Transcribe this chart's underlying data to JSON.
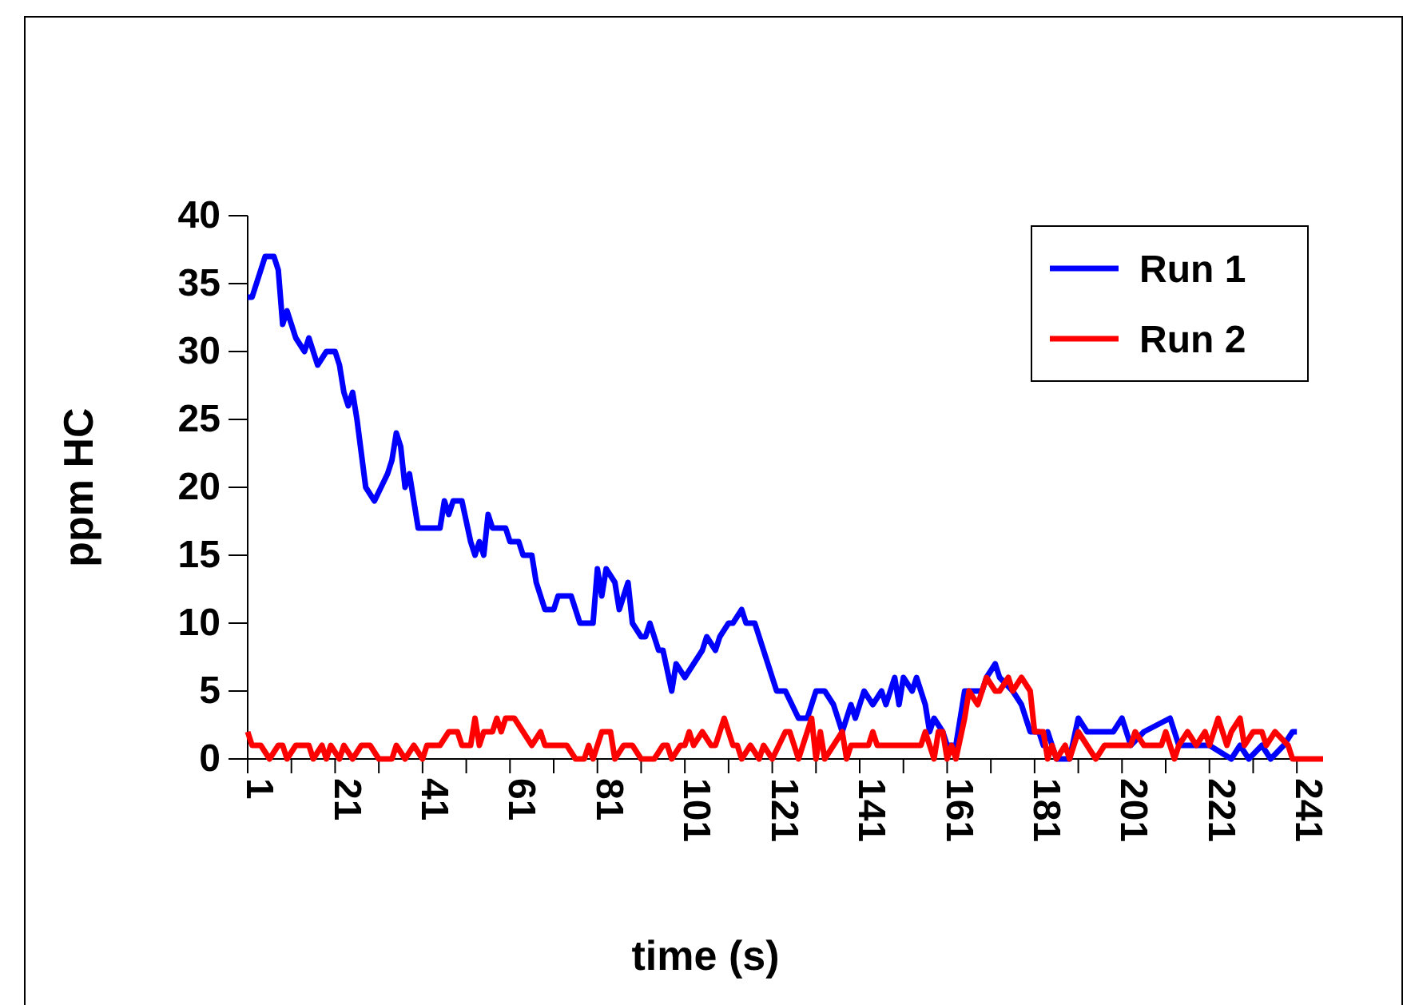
{
  "chart_data": {
    "type": "line",
    "xlabel": "time (s)",
    "ylabel": "ppm HC",
    "xlim": [
      1,
      247
    ],
    "ylim": [
      0,
      40
    ],
    "xticks": [
      1,
      {
        "value": 11,
        "label": null
      },
      21,
      {
        "value": 31,
        "label": null
      },
      41,
      {
        "value": 51,
        "label": null
      },
      61,
      {
        "value": 71,
        "label": null
      },
      81,
      {
        "value": 91,
        "label": null
      },
      101,
      {
        "value": 111,
        "label": null
      },
      121,
      {
        "value": 131,
        "label": null
      },
      141,
      {
        "value": 151,
        "label": null
      },
      161,
      {
        "value": 171,
        "label": null
      },
      181,
      {
        "value": 191,
        "label": null
      },
      201,
      {
        "value": 211,
        "label": null
      },
      221,
      {
        "value": 231,
        "label": null
      },
      241
    ],
    "yticks": [
      0,
      5,
      10,
      15,
      20,
      25,
      30,
      35,
      40
    ],
    "grid": false,
    "legend": "top right",
    "marker": "none",
    "line_style": "solid",
    "series": [
      {
        "name": "Run 1",
        "color": "#0000ff",
        "x": [
          1,
          2,
          4,
          5,
          7,
          8,
          9,
          10,
          11,
          12,
          14,
          15,
          16,
          17,
          19,
          21,
          22,
          23,
          24,
          25,
          26,
          28,
          30,
          33,
          34,
          35,
          36,
          37,
          38,
          40,
          45,
          46,
          47,
          48,
          50,
          52,
          53,
          54,
          55,
          56,
          57,
          60,
          61,
          63,
          64,
          66,
          67,
          69,
          71,
          72,
          75,
          77,
          80,
          81,
          82,
          83,
          85,
          86,
          88,
          89,
          91,
          92,
          93,
          95,
          96,
          98,
          99,
          101,
          103,
          105,
          106,
          108,
          109,
          111,
          112,
          114,
          115,
          117,
          119,
          122,
          124,
          127,
          129,
          131,
          133,
          135,
          137,
          139,
          140,
          142,
          144,
          146,
          147,
          149,
          150,
          151,
          153,
          154,
          156,
          157,
          158,
          160,
          161,
          163,
          164,
          165,
          169,
          170,
          172,
          173,
          176,
          178,
          180,
          182,
          183,
          184,
          186,
          189,
          191,
          193,
          197,
          199,
          201,
          203,
          206,
          212,
          214,
          217,
          221,
          226,
          228,
          230,
          233,
          235,
          238,
          240,
          241
        ],
        "values": [
          34,
          34,
          36,
          37,
          37,
          36,
          32,
          33,
          32,
          31,
          30,
          31,
          30,
          29,
          30,
          30,
          29,
          27,
          26,
          27,
          25,
          20,
          19,
          21,
          22,
          24,
          23,
          20,
          21,
          17,
          17,
          19,
          18,
          19,
          19,
          16,
          15,
          16,
          15,
          18,
          17,
          17,
          16,
          16,
          15,
          15,
          13,
          11,
          11,
          12,
          12,
          10,
          10,
          14,
          12,
          14,
          13,
          11,
          13,
          10,
          9,
          9,
          10,
          8,
          8,
          5,
          7,
          6,
          7,
          8,
          9,
          8,
          9,
          10,
          10,
          11,
          10,
          10,
          8,
          5,
          5,
          3,
          3,
          5,
          5,
          4,
          2,
          4,
          3,
          5,
          4,
          5,
          4,
          6,
          4,
          6,
          5,
          6,
          4,
          2,
          3,
          2,
          1,
          1,
          3,
          5,
          5,
          6,
          7,
          6,
          5,
          4,
          2,
          2,
          1,
          2,
          0,
          0,
          3,
          2,
          2,
          2,
          3,
          1,
          2,
          3,
          1,
          1,
          1,
          0,
          1,
          0,
          1,
          0,
          1,
          2,
          2
        ]
      },
      {
        "name": "Run 2",
        "color": "#ff0000",
        "x": [
          1,
          2,
          4,
          6,
          8,
          9,
          10,
          12,
          15,
          16,
          18,
          19,
          20,
          22,
          23,
          25,
          27,
          29,
          31,
          34,
          35,
          37,
          39,
          41,
          42,
          45,
          47,
          49,
          50,
          52,
          53,
          54,
          55,
          57,
          58,
          59,
          60,
          62,
          64,
          66,
          68,
          69,
          74,
          76,
          78,
          79,
          80,
          82,
          84,
          85,
          87,
          89,
          91,
          94,
          96,
          97,
          98,
          100,
          101,
          102,
          103,
          105,
          107,
          108,
          110,
          112,
          113,
          114,
          116,
          118,
          119,
          121,
          124,
          125,
          127,
          128,
          130,
          131,
          132,
          133,
          135,
          137,
          138,
          139,
          143,
          144,
          145,
          155,
          156,
          158,
          159,
          160,
          161,
          162,
          163,
          165,
          166,
          168,
          169,
          170,
          172,
          173,
          175,
          176,
          178,
          180,
          181,
          183,
          184,
          185,
          186,
          188,
          189,
          191,
          193,
          195,
          197,
          203,
          204,
          206,
          210,
          211,
          213,
          214,
          216,
          218,
          220,
          221,
          223,
          225,
          226,
          228,
          229,
          231,
          233,
          234,
          236,
          239,
          240,
          247
        ],
        "values": [
          2,
          1,
          1,
          0,
          1,
          1,
          0,
          1,
          1,
          0,
          1,
          0,
          1,
          0,
          1,
          0,
          1,
          1,
          0,
          0,
          1,
          0,
          1,
          0,
          1,
          1,
          2,
          2,
          1,
          1,
          3,
          1,
          2,
          2,
          3,
          2,
          3,
          3,
          2,
          1,
          2,
          1,
          1,
          0,
          0,
          1,
          0,
          2,
          2,
          0,
          1,
          1,
          0,
          0,
          1,
          1,
          0,
          1,
          1,
          2,
          1,
          2,
          1,
          1,
          3,
          1,
          1,
          0,
          1,
          0,
          1,
          0,
          2,
          2,
          0,
          1,
          3,
          0,
          2,
          0,
          1,
          2,
          0,
          1,
          1,
          2,
          1,
          1,
          2,
          0,
          2,
          2,
          0,
          1,
          0,
          3,
          5,
          4,
          5,
          6,
          5,
          5,
          6,
          5,
          6,
          5,
          2,
          2,
          0,
          1,
          0,
          1,
          0,
          2,
          1,
          0,
          1,
          1,
          2,
          1,
          1,
          2,
          0,
          1,
          2,
          1,
          2,
          1,
          3,
          1,
          2,
          3,
          1,
          2,
          2,
          1,
          2,
          1,
          0,
          0
        ]
      }
    ]
  }
}
